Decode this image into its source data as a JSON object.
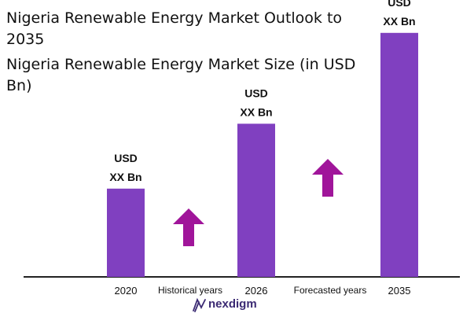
{
  "chart_data": {
    "type": "bar",
    "title": "Nigeria Renewable Energy  Market Outlook to 2035",
    "subtitle": "Nigeria Renewable Energy Market Size (in USD Bn)",
    "categories": [
      "2020",
      "2026",
      "2035"
    ],
    "values": [
      0.34,
      0.59,
      0.94
    ],
    "value_note": "relative bar heights; no numeric axis printed",
    "bar_labels": [
      [
        "USD",
        "XX Bn"
      ],
      [
        "USD",
        "XX Bn"
      ],
      [
        "USD",
        "XX Bn"
      ]
    ],
    "period_labels": [
      "Historical years",
      "Forecasted years"
    ],
    "xlabel": "",
    "ylabel": "",
    "grid": false,
    "legend": "none"
  },
  "brand": {
    "logo_text": "nexdigm"
  },
  "colors": {
    "bar": "#8040c0",
    "arrow": "#a0159a",
    "axis": "#222222",
    "logo": "#3b2a73",
    "text": "#111111"
  }
}
